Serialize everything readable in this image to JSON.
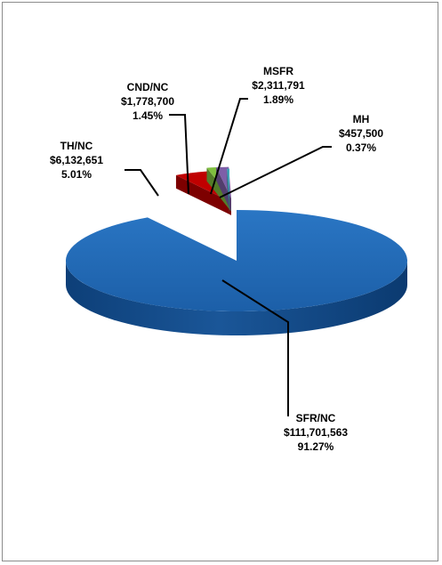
{
  "chart_data": {
    "type": "pie",
    "title": "",
    "style": "3d-exploded",
    "slices": [
      {
        "label": "SFR/NC",
        "value": 111701563,
        "value_text": "$111,701,563",
        "percent": 91.27,
        "percent_text": "91.27%",
        "color": "#1f64ad"
      },
      {
        "label": "TH/NC",
        "value": 6132651,
        "value_text": "$6,132,651",
        "percent": 5.01,
        "percent_text": "5.01%",
        "color": "#c00000"
      },
      {
        "label": "CND/NC",
        "value": 1778700,
        "value_text": "$1,778,700",
        "percent": 1.45,
        "percent_text": "1.45%",
        "color": "#7fbf3f"
      },
      {
        "label": "MSFR",
        "value": 2311791,
        "value_text": "$2,311,791",
        "percent": 1.89,
        "percent_text": "1.89%",
        "color": "#7e5fa8"
      },
      {
        "label": "MH",
        "value": 457500,
        "value_text": "$457,500",
        "percent": 0.37,
        "percent_text": "0.37%",
        "color": "#3fa6b8"
      }
    ],
    "legend": "none"
  }
}
